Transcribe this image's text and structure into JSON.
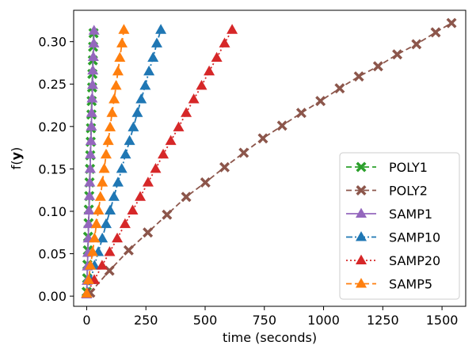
{
  "chart_data": {
    "type": "line",
    "title": "",
    "xlabel": "time (seconds)",
    "ylabel_plain": "f(",
    "ylabel_bold": "y",
    "ylabel_close": ")",
    "xlim": [
      -55,
      1600
    ],
    "ylim": [
      -0.012,
      0.337
    ],
    "xticks": [
      0,
      250,
      500,
      750,
      1000,
      1250,
      1500
    ],
    "xtick_labels": [
      "0",
      "250",
      "500",
      "750",
      "1000",
      "1250",
      "1500"
    ],
    "yticks": [
      0.0,
      0.05,
      0.1,
      0.15,
      0.2,
      0.25,
      0.3
    ],
    "ytick_labels": [
      "0.00",
      "0.05",
      "0.10",
      "0.15",
      "0.20",
      "0.25",
      "0.30"
    ],
    "grid": false,
    "legend_position": "lower-right",
    "series": [
      {
        "name": "POLY1",
        "color": "#2ca02c",
        "marker": "X",
        "linestyle": "dashed",
        "x": [
          0,
          2,
          3,
          5,
          6,
          8,
          9,
          11,
          12,
          14,
          15,
          17,
          18,
          20,
          21,
          23,
          24,
          26,
          27,
          29
        ],
        "y": [
          0.005,
          0.021,
          0.037,
          0.054,
          0.07,
          0.086,
          0.102,
          0.118,
          0.134,
          0.15,
          0.166,
          0.182,
          0.198,
          0.214,
          0.23,
          0.246,
          0.262,
          0.278,
          0.294,
          0.31
        ]
      },
      {
        "name": "POLY2",
        "color": "#8c564b",
        "marker": "X",
        "linestyle": "dashed",
        "x": [
          15,
          96,
          177,
          258,
          339,
          420,
          501,
          582,
          663,
          744,
          825,
          906,
          987,
          1068,
          1149,
          1230,
          1311,
          1392,
          1473,
          1540
        ],
        "y": [
          0.004,
          0.03,
          0.054,
          0.075,
          0.096,
          0.117,
          0.134,
          0.152,
          0.169,
          0.186,
          0.201,
          0.216,
          0.23,
          0.245,
          0.259,
          0.271,
          0.285,
          0.297,
          0.311,
          0.322
        ]
      },
      {
        "name": "SAMP1",
        "color": "#9467bd",
        "marker": "^",
        "linestyle": "solid",
        "x": [
          0,
          2,
          3,
          5,
          7,
          8,
          10,
          12,
          13,
          15,
          16,
          18,
          20,
          21,
          23,
          25,
          26,
          28,
          30,
          31
        ],
        "y": [
          0.002,
          0.018,
          0.035,
          0.051,
          0.068,
          0.085,
          0.101,
          0.118,
          0.134,
          0.15,
          0.167,
          0.183,
          0.2,
          0.216,
          0.233,
          0.249,
          0.266,
          0.282,
          0.298,
          0.313
        ]
      },
      {
        "name": "SAMP10",
        "color": "#1f77b4",
        "marker": "^",
        "linestyle": "dashdot",
        "x": [
          0,
          16,
          33,
          49,
          66,
          82,
          99,
          115,
          132,
          148,
          164,
          181,
          197,
          214,
          230,
          247,
          263,
          280,
          296,
          313
        ],
        "y": [
          0.003,
          0.019,
          0.036,
          0.052,
          0.068,
          0.085,
          0.101,
          0.117,
          0.134,
          0.15,
          0.167,
          0.183,
          0.199,
          0.216,
          0.232,
          0.248,
          0.265,
          0.281,
          0.298,
          0.314
        ]
      },
      {
        "name": "SAMP20",
        "color": "#d62728",
        "marker": "^",
        "linestyle": "dotted",
        "x": [
          0,
          32,
          65,
          97,
          129,
          162,
          194,
          226,
          259,
          291,
          323,
          355,
          388,
          420,
          452,
          485,
          517,
          549,
          582,
          614
        ],
        "y": [
          0.003,
          0.019,
          0.036,
          0.052,
          0.068,
          0.085,
          0.101,
          0.117,
          0.134,
          0.15,
          0.167,
          0.183,
          0.199,
          0.216,
          0.232,
          0.248,
          0.265,
          0.281,
          0.298,
          0.314
        ]
      },
      {
        "name": "SAMP5",
        "color": "#ff7f0e",
        "marker": "^",
        "linestyle": "dashed",
        "x": [
          0,
          8,
          16,
          25,
          33,
          41,
          50,
          58,
          66,
          74,
          82,
          91,
          99,
          107,
          116,
          124,
          132,
          140,
          149,
          157
        ],
        "y": [
          0.003,
          0.019,
          0.036,
          0.052,
          0.068,
          0.085,
          0.101,
          0.117,
          0.134,
          0.15,
          0.167,
          0.183,
          0.199,
          0.216,
          0.232,
          0.248,
          0.265,
          0.281,
          0.298,
          0.314
        ]
      }
    ]
  }
}
